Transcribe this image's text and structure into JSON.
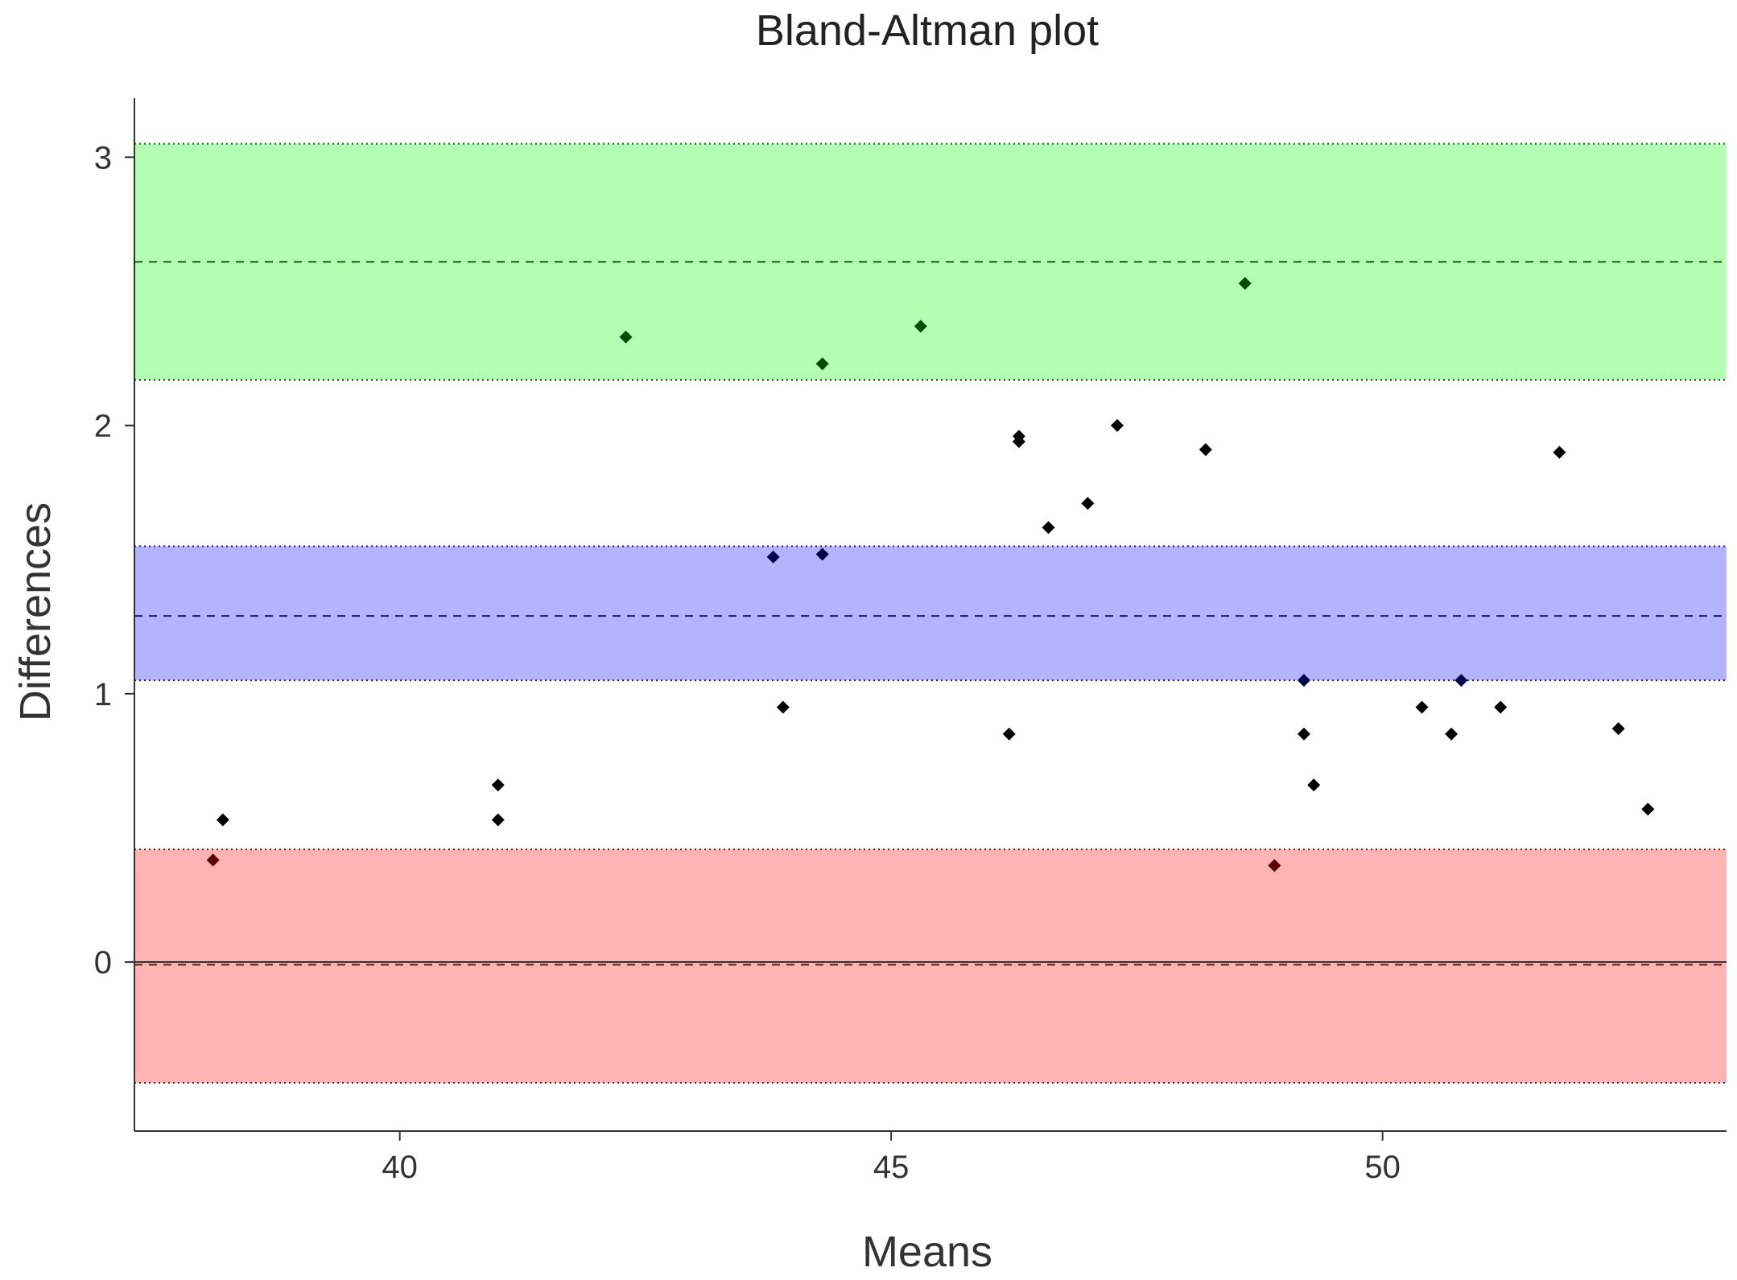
{
  "chart_data": {
    "type": "scatter",
    "title": "Bland-Altman plot",
    "xlabel": "Means",
    "ylabel": "Differences",
    "xlim": [
      37.3,
      53.5
    ],
    "ylim": [
      -0.63,
      3.22
    ],
    "xticks": [
      40,
      45,
      50
    ],
    "yticks": [
      0,
      1,
      2,
      3
    ],
    "grid": false,
    "legend": "none",
    "bands": [
      {
        "role": "upper-limit-ci",
        "from": 2.17,
        "to": 3.05,
        "fill": "#b3ffb3",
        "line": 2.61,
        "line_color": "#1a5a1a"
      },
      {
        "role": "mean-difference-ci",
        "from": 1.05,
        "to": 1.55,
        "fill": "#b3b3ff",
        "line": 1.29,
        "line_color": "#1a1a66"
      },
      {
        "role": "lower-limit-ci",
        "from": -0.45,
        "to": 0.42,
        "fill": "#ffb3b3",
        "line": -0.01,
        "line_color": "#5a1a1a"
      }
    ],
    "zero_line": 0,
    "points": [
      {
        "x": 38.1,
        "y": 0.38,
        "color": "#5a0000"
      },
      {
        "x": 38.2,
        "y": 0.53,
        "color": "#000000"
      },
      {
        "x": 41.0,
        "y": 0.66,
        "color": "#000000"
      },
      {
        "x": 41.0,
        "y": 0.53,
        "color": "#000000"
      },
      {
        "x": 42.3,
        "y": 2.33,
        "color": "#004d00"
      },
      {
        "x": 43.8,
        "y": 1.51,
        "color": "#00004d"
      },
      {
        "x": 43.9,
        "y": 0.95,
        "color": "#000000"
      },
      {
        "x": 44.3,
        "y": 2.23,
        "color": "#004d00"
      },
      {
        "x": 44.3,
        "y": 1.52,
        "color": "#00004d"
      },
      {
        "x": 45.3,
        "y": 2.37,
        "color": "#004d00"
      },
      {
        "x": 46.2,
        "y": 0.85,
        "color": "#000000"
      },
      {
        "x": 46.3,
        "y": 1.96,
        "color": "#000000"
      },
      {
        "x": 46.3,
        "y": 1.94,
        "color": "#000000"
      },
      {
        "x": 46.6,
        "y": 1.62,
        "color": "#000000"
      },
      {
        "x": 47.0,
        "y": 1.71,
        "color": "#000000"
      },
      {
        "x": 47.3,
        "y": 2.0,
        "color": "#000000"
      },
      {
        "x": 48.2,
        "y": 1.91,
        "color": "#000000"
      },
      {
        "x": 48.6,
        "y": 2.53,
        "color": "#004d00"
      },
      {
        "x": 48.9,
        "y": 0.36,
        "color": "#5a0000"
      },
      {
        "x": 49.2,
        "y": 1.05,
        "color": "#00004d"
      },
      {
        "x": 49.2,
        "y": 0.85,
        "color": "#000000"
      },
      {
        "x": 49.3,
        "y": 0.66,
        "color": "#000000"
      },
      {
        "x": 50.4,
        "y": 0.95,
        "color": "#000000"
      },
      {
        "x": 50.7,
        "y": 0.85,
        "color": "#000000"
      },
      {
        "x": 50.8,
        "y": 1.05,
        "color": "#00004d"
      },
      {
        "x": 51.2,
        "y": 0.95,
        "color": "#000000"
      },
      {
        "x": 51.8,
        "y": 1.9,
        "color": "#000000"
      },
      {
        "x": 52.4,
        "y": 0.87,
        "color": "#000000"
      },
      {
        "x": 52.7,
        "y": 0.57,
        "color": "#000000"
      }
    ]
  }
}
